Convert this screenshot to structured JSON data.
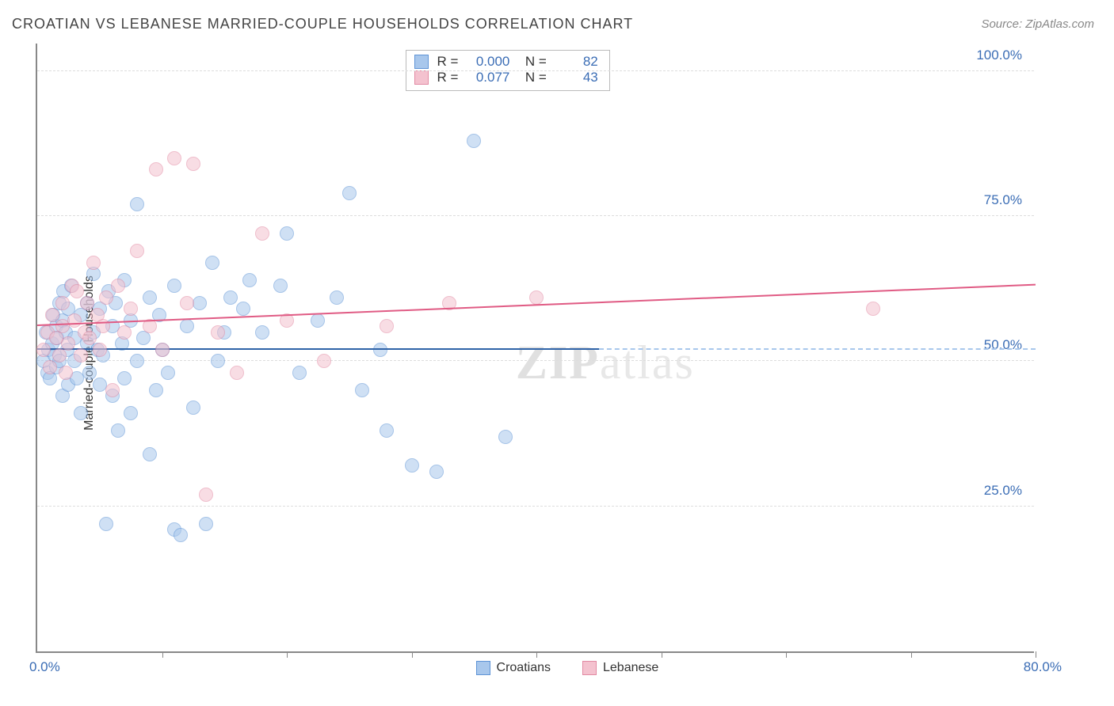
{
  "title": "CROATIAN VS LEBANESE MARRIED-COUPLE HOUSEHOLDS CORRELATION CHART",
  "source": "Source: ZipAtlas.com",
  "watermark": "ZIPatlas",
  "chart": {
    "type": "scatter",
    "ylabel": "Married-couple Households",
    "xlim": [
      0,
      80
    ],
    "ylim": [
      0,
      105
    ],
    "yticks": [
      25,
      50,
      75,
      100
    ],
    "ytick_labels": [
      "25.0%",
      "50.0%",
      "75.0%",
      "100.0%"
    ],
    "xtick_positions": [
      10,
      20,
      30,
      40,
      50,
      60,
      70,
      80
    ],
    "xval_min_label": "0.0%",
    "xval_max_label": "80.0%",
    "background_color": "#ffffff",
    "grid_color": "#dddddd",
    "point_radius": 9,
    "point_opacity": 0.55,
    "series": [
      {
        "name": "Croatians",
        "fill": "#a8c7ec",
        "stroke": "#5f94d6",
        "trend_color": "#2f63a8",
        "trend": {
          "x1": 0,
          "y1": 52,
          "x2": 45,
          "y2": 52,
          "dash_to_x": 80
        },
        "stats": {
          "R": "0.000",
          "N": "82"
        },
        "points": [
          [
            0.5,
            50
          ],
          [
            0.7,
            55
          ],
          [
            0.8,
            48
          ],
          [
            0.9,
            52
          ],
          [
            1.0,
            47
          ],
          [
            1.2,
            53
          ],
          [
            1.3,
            58
          ],
          [
            1.4,
            51
          ],
          [
            1.5,
            56
          ],
          [
            1.5,
            49
          ],
          [
            1.6,
            54
          ],
          [
            1.8,
            50
          ],
          [
            1.8,
            60
          ],
          [
            2.0,
            57
          ],
          [
            2.0,
            44
          ],
          [
            2.1,
            62
          ],
          [
            2.3,
            55
          ],
          [
            2.4,
            52
          ],
          [
            2.5,
            59
          ],
          [
            2.5,
            46
          ],
          [
            2.7,
            63
          ],
          [
            3.0,
            54
          ],
          [
            3.0,
            50
          ],
          [
            3.2,
            47
          ],
          [
            3.5,
            41
          ],
          [
            3.5,
            58
          ],
          [
            4.0,
            53
          ],
          [
            4.0,
            60
          ],
          [
            4.2,
            48
          ],
          [
            4.5,
            55
          ],
          [
            4.5,
            65
          ],
          [
            4.8,
            52
          ],
          [
            5.0,
            46
          ],
          [
            5.0,
            59
          ],
          [
            5.3,
            51
          ],
          [
            5.5,
            22
          ],
          [
            5.7,
            62
          ],
          [
            6.0,
            44
          ],
          [
            6.0,
            56
          ],
          [
            6.3,
            60
          ],
          [
            6.5,
            38
          ],
          [
            6.8,
            53
          ],
          [
            7.0,
            47
          ],
          [
            7.0,
            64
          ],
          [
            7.5,
            41
          ],
          [
            7.5,
            57
          ],
          [
            8.0,
            50
          ],
          [
            8.0,
            77
          ],
          [
            8.5,
            54
          ],
          [
            9.0,
            34
          ],
          [
            9.0,
            61
          ],
          [
            9.5,
            45
          ],
          [
            9.8,
            58
          ],
          [
            10.0,
            52
          ],
          [
            10.5,
            48
          ],
          [
            11.0,
            63
          ],
          [
            11.0,
            21
          ],
          [
            11.5,
            20
          ],
          [
            12.0,
            56
          ],
          [
            12.5,
            42
          ],
          [
            13.0,
            60
          ],
          [
            13.5,
            22
          ],
          [
            14.0,
            67
          ],
          [
            14.5,
            50
          ],
          [
            15.0,
            55
          ],
          [
            15.5,
            61
          ],
          [
            16.5,
            59
          ],
          [
            17.0,
            64
          ],
          [
            18.0,
            55
          ],
          [
            19.5,
            63
          ],
          [
            20.0,
            72
          ],
          [
            21.0,
            48
          ],
          [
            22.5,
            57
          ],
          [
            24.0,
            61
          ],
          [
            25.0,
            79
          ],
          [
            26.0,
            45
          ],
          [
            27.5,
            52
          ],
          [
            28.0,
            38
          ],
          [
            30.0,
            32
          ],
          [
            32.0,
            31
          ],
          [
            35.0,
            88
          ],
          [
            37.5,
            37
          ]
        ]
      },
      {
        "name": "Lebanese",
        "fill": "#f4c2cf",
        "stroke": "#e28aa3",
        "trend_color": "#e05b84",
        "trend": {
          "x1": 0,
          "y1": 56,
          "x2": 80,
          "y2": 63
        },
        "stats": {
          "R": "0.077",
          "N": "43"
        },
        "points": [
          [
            0.5,
            52
          ],
          [
            0.8,
            55
          ],
          [
            1.0,
            49
          ],
          [
            1.2,
            58
          ],
          [
            1.5,
            54
          ],
          [
            1.8,
            51
          ],
          [
            2.0,
            60
          ],
          [
            2.0,
            56
          ],
          [
            2.3,
            48
          ],
          [
            2.5,
            53
          ],
          [
            2.8,
            63
          ],
          [
            3.0,
            57
          ],
          [
            3.2,
            62
          ],
          [
            3.5,
            51
          ],
          [
            3.8,
            55
          ],
          [
            4.0,
            60
          ],
          [
            4.2,
            54
          ],
          [
            4.5,
            67
          ],
          [
            4.8,
            58
          ],
          [
            5.0,
            52
          ],
          [
            5.3,
            56
          ],
          [
            5.5,
            61
          ],
          [
            6.0,
            45
          ],
          [
            6.5,
            63
          ],
          [
            7.0,
            55
          ],
          [
            7.5,
            59
          ],
          [
            8.0,
            69
          ],
          [
            9.0,
            56
          ],
          [
            9.5,
            83
          ],
          [
            10.0,
            52
          ],
          [
            11.0,
            85
          ],
          [
            12.0,
            60
          ],
          [
            12.5,
            84
          ],
          [
            13.5,
            27
          ],
          [
            14.5,
            55
          ],
          [
            16.0,
            48
          ],
          [
            18.0,
            72
          ],
          [
            20.0,
            57
          ],
          [
            23.0,
            50
          ],
          [
            28.0,
            56
          ],
          [
            33.0,
            60
          ],
          [
            40.0,
            61
          ],
          [
            67.0,
            59
          ]
        ]
      }
    ]
  }
}
